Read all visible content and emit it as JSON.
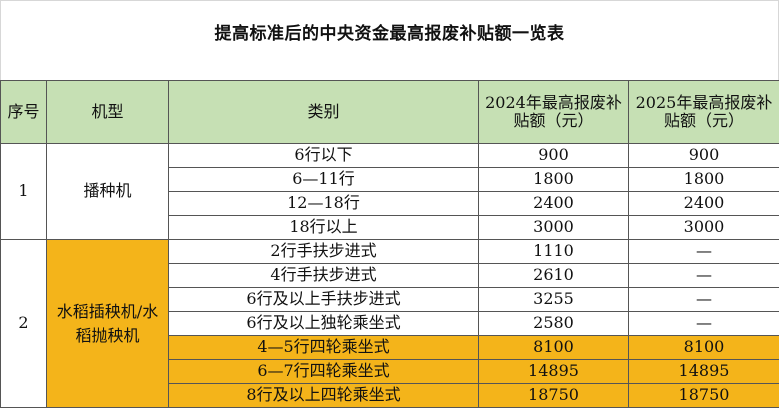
{
  "title": "提高标准后的中央资金最高报废补贴额一览表",
  "headers": {
    "seq": "序号",
    "model": "机型",
    "category": "类别",
    "y2024": "2024年最高报废补贴额（元）",
    "y2025": "2025年最高报废补贴额（元）"
  },
  "groups": [
    {
      "seq": "1",
      "model": "播种机",
      "rows": [
        {
          "category": "6行以下",
          "y2024": "900",
          "y2025": "900"
        },
        {
          "category": "6—11行",
          "y2024": "1800",
          "y2025": "1800"
        },
        {
          "category": "12—18行",
          "y2024": "2400",
          "y2025": "2400"
        },
        {
          "category": "18行以上",
          "y2024": "3000",
          "y2025": "3000"
        }
      ]
    },
    {
      "seq": "2",
      "model": "水稻插秧机/水稻抛秧机",
      "rows": [
        {
          "category": "2行手扶步进式",
          "y2024": "1110",
          "y2025": "—"
        },
        {
          "category": "4行手扶步进式",
          "y2024": "2610",
          "y2025": "—"
        },
        {
          "category": "6行及以上手扶步进式",
          "y2024": "3255",
          "y2025": "—"
        },
        {
          "category": "6行及以上独轮乘坐式",
          "y2024": "2580",
          "y2025": "—"
        },
        {
          "category": "4—5行四轮乘坐式",
          "y2024": "8100",
          "y2025": "8100"
        },
        {
          "category": "6—7行四轮乘坐式",
          "y2024": "14895",
          "y2025": "14895"
        },
        {
          "category": "8行及以上四轮乘坐式",
          "y2024": "18750",
          "y2025": "18750"
        }
      ]
    }
  ],
  "colors": {
    "header_bg": "#c6e0b4",
    "highlight_bg": "#f4b41a"
  }
}
